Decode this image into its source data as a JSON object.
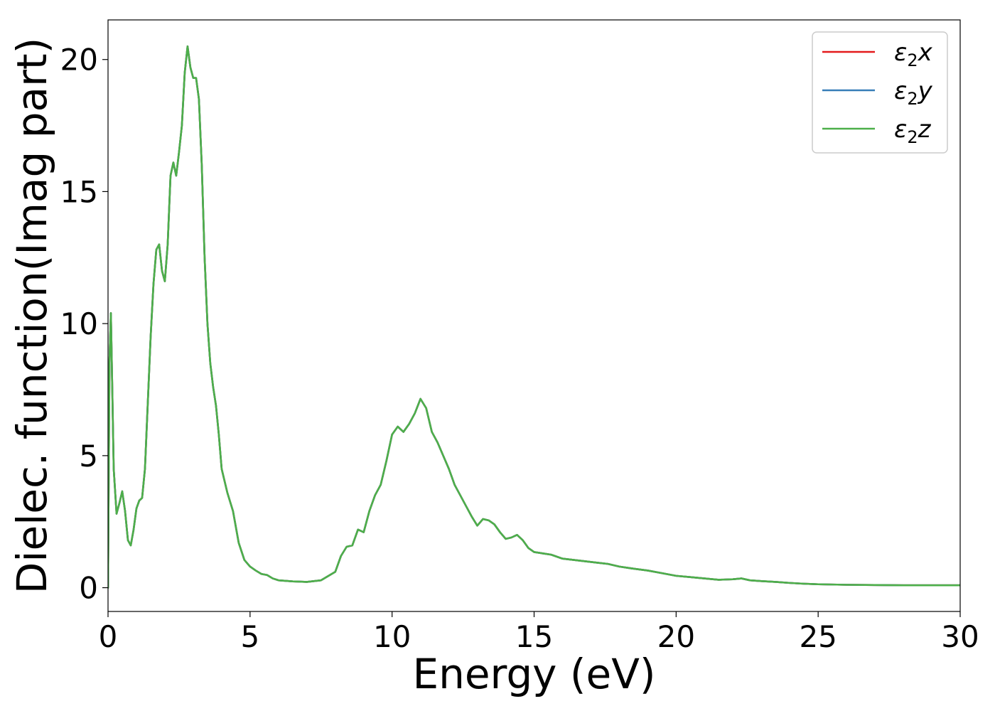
{
  "chart_data": {
    "type": "line",
    "xlabel": "Energy (eV)",
    "ylabel": "Dielec. function(Imag part)",
    "xlim": [
      0,
      30
    ],
    "ylim": [
      -0.9,
      21.5
    ],
    "xticks": [
      0,
      5,
      10,
      15,
      20,
      25,
      30
    ],
    "yticks": [
      0,
      5,
      10,
      15,
      20
    ],
    "grid": false,
    "legend_position": "top-right",
    "x": [
      0,
      0.05,
      0.1,
      0.15,
      0.2,
      0.3,
      0.4,
      0.5,
      0.6,
      0.7,
      0.8,
      0.9,
      1.0,
      1.1,
      1.2,
      1.3,
      1.4,
      1.5,
      1.6,
      1.7,
      1.8,
      1.9,
      2.0,
      2.1,
      2.2,
      2.3,
      2.4,
      2.5,
      2.6,
      2.7,
      2.8,
      2.9,
      3.0,
      3.1,
      3.2,
      3.3,
      3.4,
      3.5,
      3.6,
      3.7,
      3.8,
      3.9,
      4.0,
      4.2,
      4.4,
      4.6,
      4.8,
      5.0,
      5.2,
      5.4,
      5.6,
      5.8,
      6.0,
      6.5,
      7.0,
      7.5,
      8.0,
      8.2,
      8.4,
      8.6,
      8.8,
      9.0,
      9.2,
      9.4,
      9.6,
      9.8,
      10.0,
      10.2,
      10.4,
      10.6,
      10.8,
      11.0,
      11.2,
      11.4,
      11.6,
      11.8,
      12.0,
      12.2,
      12.4,
      12.6,
      12.8,
      13.0,
      13.2,
      13.4,
      13.6,
      13.8,
      14.0,
      14.2,
      14.4,
      14.6,
      14.8,
      15.0,
      15.3,
      15.6,
      16.0,
      16.4,
      16.8,
      17.2,
      17.6,
      18.0,
      18.5,
      19.0,
      19.5,
      20.0,
      20.5,
      21.0,
      21.5,
      22.0,
      22.3,
      22.6,
      23.0,
      23.5,
      24.0,
      24.5,
      25.0,
      26.0,
      27.0,
      28.0,
      29.0,
      30.0
    ],
    "series": [
      {
        "name": "ε₂x",
        "legend_label": "2x",
        "color": "#e41a1c",
        "y": [
          0,
          8.5,
          10.4,
          7.5,
          4.5,
          2.8,
          3.2,
          3.65,
          2.9,
          1.8,
          1.6,
          2.2,
          3.0,
          3.3,
          3.4,
          4.5,
          7.0,
          9.5,
          11.5,
          12.8,
          13.0,
          12.0,
          11.6,
          13.0,
          15.6,
          16.1,
          15.6,
          16.5,
          17.5,
          19.5,
          20.5,
          19.7,
          19.3,
          19.3,
          18.5,
          16.0,
          12.5,
          10.0,
          8.5,
          7.6,
          6.9,
          5.8,
          4.5,
          3.6,
          2.9,
          1.7,
          1.05,
          0.8,
          0.65,
          0.52,
          0.48,
          0.35,
          0.28,
          0.24,
          0.22,
          0.28,
          0.6,
          1.2,
          1.55,
          1.6,
          2.2,
          2.1,
          2.9,
          3.5,
          3.9,
          4.8,
          5.8,
          6.1,
          5.9,
          6.2,
          6.6,
          7.15,
          6.8,
          5.9,
          5.5,
          5.0,
          4.5,
          3.9,
          3.5,
          3.1,
          2.7,
          2.35,
          2.6,
          2.55,
          2.4,
          2.1,
          1.85,
          1.9,
          2.0,
          1.8,
          1.5,
          1.35,
          1.3,
          1.25,
          1.1,
          1.05,
          1.0,
          0.95,
          0.9,
          0.8,
          0.72,
          0.65,
          0.55,
          0.45,
          0.4,
          0.35,
          0.3,
          0.32,
          0.35,
          0.28,
          0.25,
          0.22,
          0.18,
          0.15,
          0.13,
          0.11,
          0.1,
          0.09,
          0.09,
          0.09
        ]
      },
      {
        "name": "ε₂y",
        "legend_label": "2y",
        "color": "#377eb8",
        "y": [
          0,
          8.5,
          10.4,
          7.5,
          4.5,
          2.8,
          3.2,
          3.65,
          2.9,
          1.8,
          1.6,
          2.2,
          3.0,
          3.3,
          3.4,
          4.5,
          7.0,
          9.5,
          11.5,
          12.8,
          13.0,
          12.0,
          11.6,
          13.0,
          15.6,
          16.1,
          15.6,
          16.5,
          17.5,
          19.5,
          20.5,
          19.7,
          19.3,
          19.3,
          18.5,
          16.0,
          12.5,
          10.0,
          8.5,
          7.6,
          6.9,
          5.8,
          4.5,
          3.6,
          2.9,
          1.7,
          1.05,
          0.8,
          0.65,
          0.52,
          0.48,
          0.35,
          0.28,
          0.24,
          0.22,
          0.28,
          0.6,
          1.2,
          1.55,
          1.6,
          2.2,
          2.1,
          2.9,
          3.5,
          3.9,
          4.8,
          5.8,
          6.1,
          5.9,
          6.2,
          6.6,
          7.15,
          6.8,
          5.9,
          5.5,
          5.0,
          4.5,
          3.9,
          3.5,
          3.1,
          2.7,
          2.35,
          2.6,
          2.55,
          2.4,
          2.1,
          1.85,
          1.9,
          2.0,
          1.8,
          1.5,
          1.35,
          1.3,
          1.25,
          1.1,
          1.05,
          1.0,
          0.95,
          0.9,
          0.8,
          0.72,
          0.65,
          0.55,
          0.45,
          0.4,
          0.35,
          0.3,
          0.32,
          0.35,
          0.28,
          0.25,
          0.22,
          0.18,
          0.15,
          0.13,
          0.11,
          0.1,
          0.09,
          0.09,
          0.09
        ]
      },
      {
        "name": "ε₂z",
        "legend_label": "2z",
        "color": "#4daf4a",
        "y": [
          0,
          8.5,
          10.4,
          7.5,
          4.5,
          2.8,
          3.2,
          3.65,
          2.9,
          1.8,
          1.6,
          2.2,
          3.0,
          3.3,
          3.4,
          4.5,
          7.0,
          9.5,
          11.5,
          12.8,
          13.0,
          12.0,
          11.6,
          13.0,
          15.6,
          16.1,
          15.6,
          16.5,
          17.5,
          19.5,
          20.5,
          19.7,
          19.3,
          19.3,
          18.5,
          16.0,
          12.5,
          10.0,
          8.5,
          7.6,
          6.9,
          5.8,
          4.5,
          3.6,
          2.9,
          1.7,
          1.05,
          0.8,
          0.65,
          0.52,
          0.48,
          0.35,
          0.28,
          0.24,
          0.22,
          0.28,
          0.6,
          1.2,
          1.55,
          1.6,
          2.2,
          2.1,
          2.9,
          3.5,
          3.9,
          4.8,
          5.8,
          6.1,
          5.9,
          6.2,
          6.6,
          7.15,
          6.8,
          5.9,
          5.5,
          5.0,
          4.5,
          3.9,
          3.5,
          3.1,
          2.7,
          2.35,
          2.6,
          2.55,
          2.4,
          2.1,
          1.85,
          1.9,
          2.0,
          1.8,
          1.5,
          1.35,
          1.3,
          1.25,
          1.1,
          1.05,
          1.0,
          0.95,
          0.9,
          0.8,
          0.72,
          0.65,
          0.55,
          0.45,
          0.4,
          0.35,
          0.3,
          0.32,
          0.35,
          0.28,
          0.25,
          0.22,
          0.18,
          0.15,
          0.13,
          0.11,
          0.1,
          0.09,
          0.09,
          0.09
        ]
      }
    ]
  }
}
